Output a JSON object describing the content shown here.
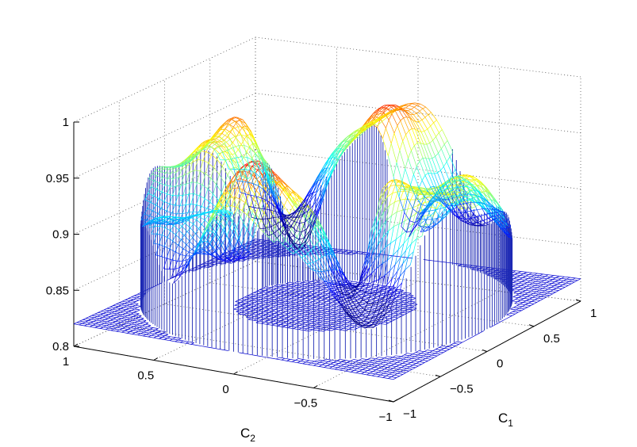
{
  "chart_data": {
    "type": "surface",
    "title": "",
    "xlabel": "C",
    "xlabel_subscript": "1",
    "ylabel": "C",
    "ylabel_subscript": "2",
    "zlabel": "",
    "xlim": [
      -1,
      1
    ],
    "ylim": [
      -1,
      1
    ],
    "zlim": [
      0.8,
      1
    ],
    "x_ticks": [
      "−1",
      "−0.5",
      "0",
      "0.5",
      "1"
    ],
    "y_ticks": [
      "1",
      "0.5",
      "0",
      "−0.5",
      "−1"
    ],
    "z_ticks": [
      "0.8",
      "0.85",
      "0.9",
      "0.95",
      "1"
    ],
    "colormap": "jet",
    "grid": true,
    "floor_value": 0.82,
    "description_of_surface": {
      "region_radius_min": 0.5,
      "region_radius_max": 1.0,
      "z_min": 0.8,
      "z_max": 0.995,
      "outside_region_value": 0.82
    }
  }
}
